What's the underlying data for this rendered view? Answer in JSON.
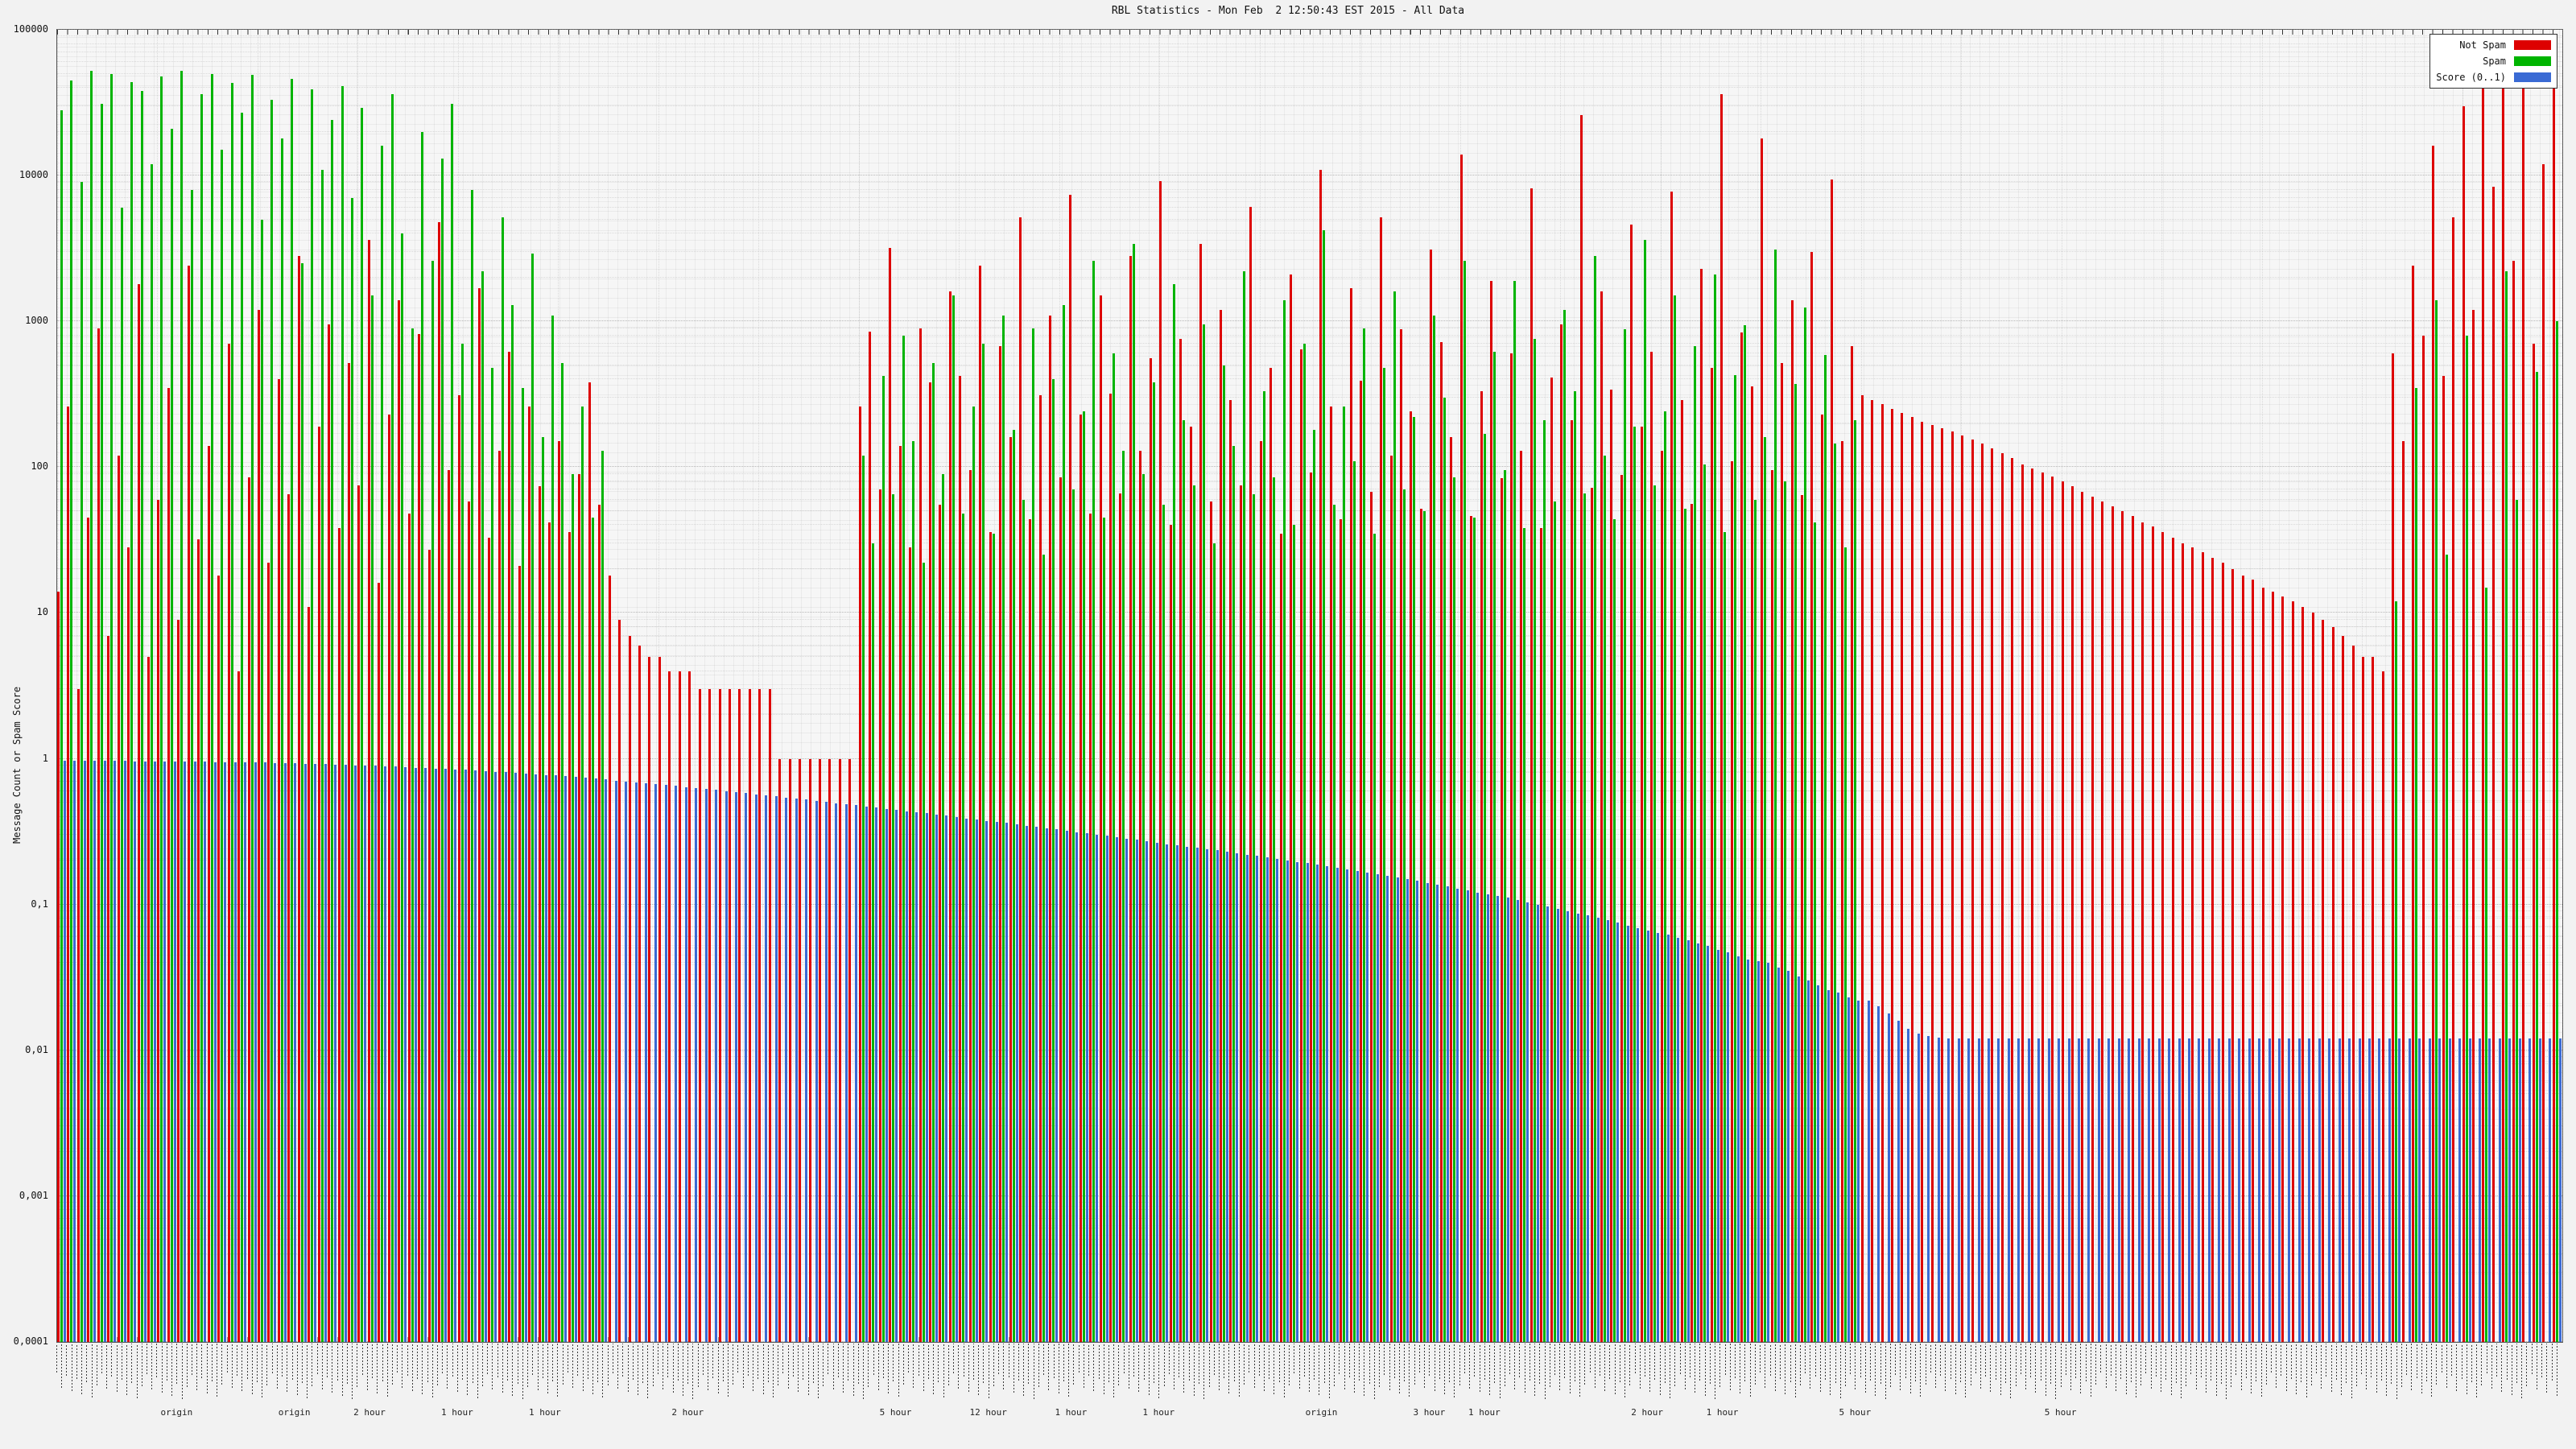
{
  "title": "RBL Statistics - Mon Feb  2 12:50:43 EST 2015 - All Data",
  "y_axis": {
    "label": "Message Count or Spam Score",
    "ticks": [
      "100000",
      "10000",
      "1000",
      "100",
      "10",
      "1",
      "0,1",
      "0,01",
      "0,001",
      "0,0001"
    ]
  },
  "x_axis": {
    "sublabels": [
      {
        "pos": 0.048,
        "text": "origin"
      },
      {
        "pos": 0.095,
        "text": "origin"
      },
      {
        "pos": 0.125,
        "text": "2 hour"
      },
      {
        "pos": 0.16,
        "text": "1 hour"
      },
      {
        "pos": 0.195,
        "text": "1 hour"
      },
      {
        "pos": 0.252,
        "text": "2 hour"
      },
      {
        "pos": 0.335,
        "text": "5 hour"
      },
      {
        "pos": 0.372,
        "text": "12 hour"
      },
      {
        "pos": 0.405,
        "text": "1 hour"
      },
      {
        "pos": 0.44,
        "text": "1 hour"
      },
      {
        "pos": 0.505,
        "text": "origin"
      },
      {
        "pos": 0.548,
        "text": "3 hour"
      },
      {
        "pos": 0.57,
        "text": "1 hour"
      },
      {
        "pos": 0.635,
        "text": "2 hour"
      },
      {
        "pos": 0.665,
        "text": "1 hour"
      },
      {
        "pos": 0.718,
        "text": "5 hour"
      },
      {
        "pos": 0.8,
        "text": "5 hour"
      }
    ]
  },
  "legend": {
    "items": [
      {
        "label": "Not Spam",
        "color": "#dd0000"
      },
      {
        "label": "Spam",
        "color": "#00b400"
      },
      {
        "label": "Score (0..1)",
        "color": "#3a6ad4"
      }
    ]
  },
  "chart_data": {
    "type": "bar",
    "yscale": "log",
    "ylim": [
      0.0001,
      100000
    ],
    "x_count": 250,
    "grid": true,
    "legend_position": "top-right",
    "series": [
      {
        "name": "Not Spam",
        "color": "#dd0000",
        "values": [
          14,
          260,
          3,
          45,
          900,
          7,
          120,
          28,
          1800,
          5,
          60,
          350,
          9,
          2400,
          32,
          140,
          18,
          700,
          4,
          85,
          1200,
          22,
          400,
          65,
          2800,
          11,
          190,
          950,
          38,
          520,
          75,
          3600,
          16,
          230,
          1400,
          48,
          820,
          27,
          4800,
          95,
          310,
          58,
          1700,
          33,
          130,
          620,
          21,
          260,
          74,
          42,
          150,
          36,
          90,
          380,
          55,
          18,
          9,
          7,
          6,
          5,
          5,
          4,
          4,
          4,
          3,
          3,
          3,
          3,
          3,
          3,
          3,
          3,
          1,
          1,
          1,
          1,
          1,
          1,
          1,
          1,
          260,
          850,
          70,
          3200,
          140,
          28,
          900,
          380,
          55,
          1600,
          420,
          95,
          2400,
          36,
          680,
          160,
          5200,
          44,
          310,
          1100,
          85,
          7400,
          230,
          48,
          1500,
          320,
          66,
          2800,
          130,
          560,
          9200,
          40,
          760,
          190,
          3400,
          58,
          1200,
          290,
          75,
          6100,
          150,
          480,
          35,
          2100,
          640,
          92,
          11000,
          260,
          44,
          1700,
          390,
          68,
          5200,
          120,
          880,
          240,
          52,
          3100,
          720,
          160,
          14000,
          46,
          330,
          1900,
          84,
          600,
          130,
          8200,
          38,
          410,
          950,
          210,
          26000,
          72,
          1600,
          340,
          88,
          4600,
          190,
          620,
          130,
          7800,
          290,
          56,
          2300,
          480,
          36000,
          110,
          840,
          360,
          18000,
          95,
          520,
          1400,
          64,
          3000,
          230,
          9400,
          150,
          680,
          310,
          290,
          270,
          250,
          235,
          220,
          205,
          195,
          185,
          175,
          165,
          155,
          145,
          135,
          125,
          115,
          105,
          98,
          92,
          86,
          80,
          74,
          68,
          63,
          58,
          54,
          50,
          46,
          42,
          39,
          36,
          33,
          30,
          28,
          26,
          24,
          22,
          20,
          18,
          17,
          15,
          14,
          13,
          12,
          11,
          10,
          9,
          8,
          7,
          6,
          5,
          5,
          4,
          600,
          150,
          2400,
          800,
          16000,
          420,
          5200,
          30000,
          1200,
          60000,
          8400,
          90000,
          2600,
          45000,
          700,
          12000,
          52000
        ]
      },
      {
        "name": "Spam",
        "color": "#00b400",
        "values": [
          28000,
          45000,
          9000,
          52000,
          31000,
          50000,
          6000,
          44000,
          38000,
          12000,
          48000,
          21000,
          52000,
          8000,
          36000,
          50000,
          15000,
          43000,
          27000,
          49000,
          5000,
          33000,
          18000,
          46000,
          2500,
          39000,
          11000,
          24000,
          41000,
          7000,
          29000,
          1500,
          16000,
          36000,
          4000,
          900,
          20000,
          2600,
          13000,
          31000,
          700,
          8000,
          2200,
          480,
          5200,
          1300,
          350,
          2900,
          160,
          1100,
          520,
          90,
          260,
          45,
          130,
          0,
          0,
          0,
          0,
          0,
          0,
          0,
          0,
          0,
          0,
          0,
          0,
          0,
          0,
          0,
          0,
          0,
          0,
          0,
          0,
          0,
          0,
          0,
          0,
          0,
          120,
          30,
          420,
          65,
          800,
          150,
          22,
          520,
          90,
          1500,
          48,
          260,
          700,
          35,
          1100,
          180,
          60,
          900,
          25,
          400,
          1300,
          70,
          240,
          2600,
          45,
          600,
          130,
          3400,
          90,
          380,
          55,
          1800,
          210,
          75,
          950,
          30,
          500,
          140,
          2200,
          65,
          330,
          85,
          1400,
          40,
          700,
          180,
          4200,
          55,
          260,
          110,
          900,
          35,
          480,
          1600,
          70,
          220,
          50,
          1100,
          300,
          85,
          2600,
          45,
          170,
          620,
          95,
          1900,
          38,
          760,
          210,
          58,
          1200,
          330,
          66,
          2800,
          120,
          44,
          880,
          190,
          3600,
          75,
          240,
          1500,
          52,
          680,
          105,
          2100,
          36,
          430,
          940,
          60,
          160,
          3100,
          80,
          370,
          1250,
          42,
          590,
          145,
          28,
          210,
          0,
          0,
          0,
          0,
          0,
          0,
          0,
          0,
          0,
          0,
          0,
          0,
          0,
          0,
          0,
          0,
          0,
          0,
          0,
          0,
          0,
          0,
          0,
          0,
          0,
          0,
          0,
          0,
          0,
          0,
          0,
          0,
          0,
          0,
          0,
          0,
          0,
          0,
          0,
          0,
          0,
          0,
          0,
          0,
          0,
          0,
          0,
          0,
          0,
          0,
          0,
          0,
          0,
          12,
          0,
          350,
          0,
          1400,
          25,
          0,
          800,
          0,
          15,
          0,
          2200,
          60,
          0,
          450,
          0,
          1000
        ]
      },
      {
        "name": "Score (0..1)",
        "color": "#3a6ad4",
        "values": [
          0.97,
          0.969,
          0.968,
          0.967,
          0.966,
          0.965,
          0.964,
          0.963,
          0.962,
          0.961,
          0.96,
          0.958,
          0.956,
          0.954,
          0.952,
          0.95,
          0.948,
          0.946,
          0.944,
          0.942,
          0.94,
          0.936,
          0.932,
          0.928,
          0.924,
          0.92,
          0.916,
          0.912,
          0.908,
          0.904,
          0.9,
          0.894,
          0.888,
          0.882,
          0.876,
          0.87,
          0.864,
          0.858,
          0.852,
          0.846,
          0.84,
          0.832,
          0.824,
          0.816,
          0.808,
          0.8,
          0.792,
          0.784,
          0.776,
          0.768,
          0.76,
          0.75,
          0.74,
          0.73,
          0.72,
          0.71,
          0.7,
          0.69,
          0.68,
          0.67,
          0.66,
          0.65,
          0.64,
          0.63,
          0.62,
          0.61,
          0.6,
          0.59,
          0.58,
          0.57,
          0.56,
          0.551,
          0.542,
          0.533,
          0.524,
          0.515,
          0.506,
          0.497,
          0.488,
          0.479,
          0.47,
          0.462,
          0.454,
          0.446,
          0.438,
          0.43,
          0.422,
          0.414,
          0.406,
          0.398,
          0.39,
          0.383,
          0.376,
          0.369,
          0.362,
          0.355,
          0.348,
          0.341,
          0.334,
          0.327,
          0.32,
          0.314,
          0.308,
          0.302,
          0.296,
          0.29,
          0.284,
          0.278,
          0.272,
          0.266,
          0.26,
          0.255,
          0.25,
          0.245,
          0.24,
          0.235,
          0.23,
          0.225,
          0.22,
          0.215,
          0.21,
          0.205,
          0.201,
          0.196,
          0.192,
          0.187,
          0.183,
          0.178,
          0.174,
          0.169,
          0.165,
          0.161,
          0.157,
          0.153,
          0.149,
          0.145,
          0.141,
          0.137,
          0.133,
          0.129,
          0.125,
          0.121,
          0.118,
          0.114,
          0.111,
          0.107,
          0.104,
          0.1,
          0.097,
          0.093,
          0.09,
          0.087,
          0.084,
          0.081,
          0.078,
          0.075,
          0.072,
          0.069,
          0.066,
          0.064,
          0.062,
          0.059,
          0.057,
          0.054,
          0.052,
          0.049,
          0.047,
          0.044,
          0.042,
          0.041,
          0.04,
          0.037,
          0.035,
          0.032,
          0.03,
          0.028,
          0.026,
          0.025,
          0.023,
          0.022,
          0.022,
          0.02,
          0.018,
          0.016,
          0.014,
          0.013,
          0.0125,
          0.0122,
          0.012,
          0.012,
          0.012,
          0.012,
          0.012,
          0.012,
          0.012,
          0.012,
          0.012,
          0.012,
          0.012,
          0.012,
          0.012,
          0.012,
          0.012,
          0.012,
          0.012,
          0.012,
          0.012,
          0.012,
          0.012,
          0.012,
          0.012,
          0.012,
          0.012,
          0.012,
          0.012,
          0.012,
          0.012,
          0.012,
          0.012,
          0.012,
          0.012,
          0.012,
          0.012,
          0.012,
          0.012,
          0.012,
          0.012,
          0.012,
          0.012,
          0.012,
          0.012,
          0.012,
          0.012,
          0.012,
          0.012,
          0.012,
          0.012,
          0.012,
          0.012,
          0.012,
          0.012,
          0.012,
          0.012,
          0.012,
          0.012,
          0.012,
          0.012,
          0.012,
          0.012,
          0.012
        ]
      }
    ]
  }
}
